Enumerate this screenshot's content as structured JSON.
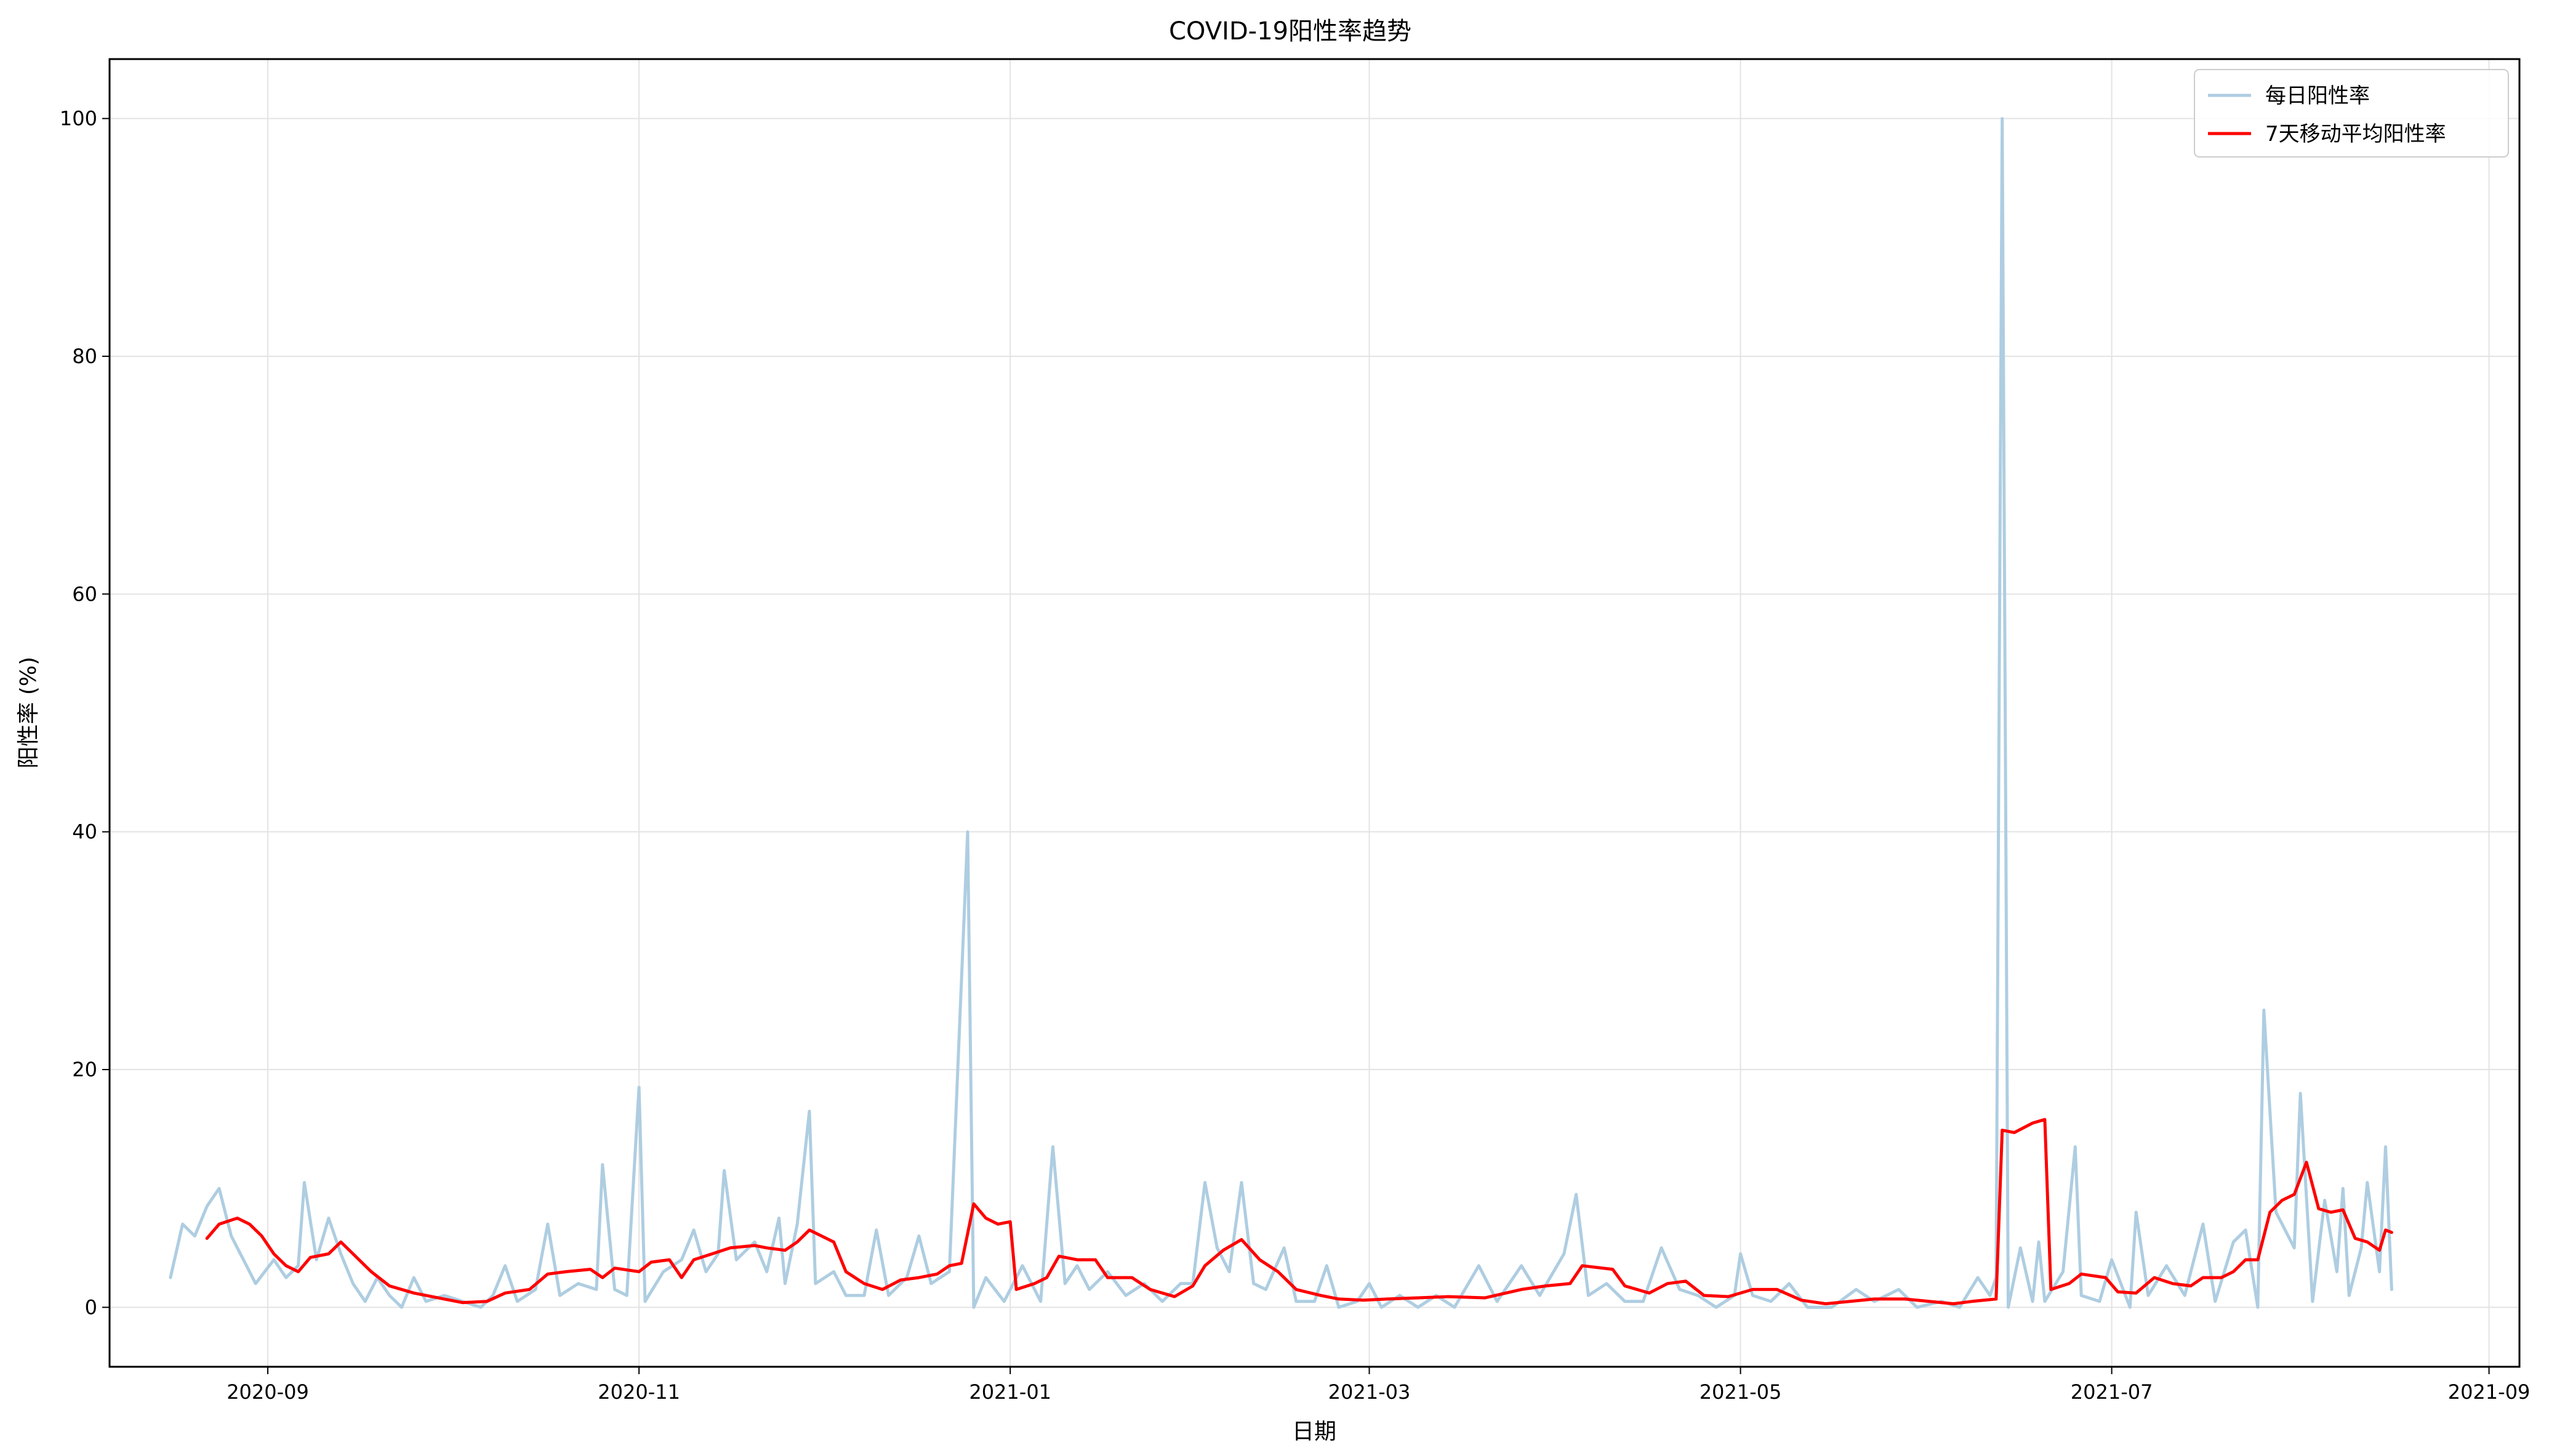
{
  "chart_data": {
    "type": "line",
    "title": "COVID-19阳性率趋势",
    "xlabel": "日期",
    "ylabel": "阳性率 (%)",
    "x_range": [
      "2020-08-06",
      "2021-09-06"
    ],
    "ylim": [
      -5,
      105
    ],
    "x_ticks": [
      "2020-09",
      "2020-11",
      "2021-01",
      "2021-03",
      "2021-05",
      "2021-07",
      "2021-09"
    ],
    "y_ticks": [
      0,
      20,
      40,
      60,
      80,
      100
    ],
    "grid": true,
    "legend_position": "top-right",
    "series": [
      {
        "name": "每日阳性率",
        "color": "#aecde1",
        "points": [
          [
            "2020-08-16",
            2.5
          ],
          [
            "2020-08-18",
            7.0
          ],
          [
            "2020-08-20",
            6.0
          ],
          [
            "2020-08-22",
            8.5
          ],
          [
            "2020-08-24",
            10.0
          ],
          [
            "2020-08-26",
            6.0
          ],
          [
            "2020-08-28",
            4.0
          ],
          [
            "2020-08-30",
            2.0
          ],
          [
            "2020-09-02",
            4.0
          ],
          [
            "2020-09-04",
            2.5
          ],
          [
            "2020-09-06",
            3.5
          ],
          [
            "2020-09-07",
            10.5
          ],
          [
            "2020-09-09",
            4.0
          ],
          [
            "2020-09-11",
            7.5
          ],
          [
            "2020-09-13",
            4.5
          ],
          [
            "2020-09-15",
            2.0
          ],
          [
            "2020-09-17",
            0.5
          ],
          [
            "2020-09-19",
            2.5
          ],
          [
            "2020-09-21",
            1.0
          ],
          [
            "2020-09-23",
            0.0
          ],
          [
            "2020-09-25",
            2.5
          ],
          [
            "2020-09-27",
            0.5
          ],
          [
            "2020-09-30",
            1.0
          ],
          [
            "2020-10-03",
            0.5
          ],
          [
            "2020-10-06",
            0.0
          ],
          [
            "2020-10-08",
            1.0
          ],
          [
            "2020-10-10",
            3.5
          ],
          [
            "2020-10-12",
            0.5
          ],
          [
            "2020-10-15",
            1.5
          ],
          [
            "2020-10-17",
            7.0
          ],
          [
            "2020-10-19",
            1.0
          ],
          [
            "2020-10-22",
            2.0
          ],
          [
            "2020-10-25",
            1.5
          ],
          [
            "2020-10-26",
            12.0
          ],
          [
            "2020-10-28",
            1.5
          ],
          [
            "2020-10-30",
            1.0
          ],
          [
            "2020-11-01",
            18.5
          ],
          [
            "2020-11-02",
            0.5
          ],
          [
            "2020-11-05",
            3.0
          ],
          [
            "2020-11-08",
            4.0
          ],
          [
            "2020-11-10",
            6.5
          ],
          [
            "2020-11-12",
            3.0
          ],
          [
            "2020-11-14",
            4.5
          ],
          [
            "2020-11-15",
            11.5
          ],
          [
            "2020-11-17",
            4.0
          ],
          [
            "2020-11-20",
            5.5
          ],
          [
            "2020-11-22",
            3.0
          ],
          [
            "2020-11-24",
            7.5
          ],
          [
            "2020-11-25",
            2.0
          ],
          [
            "2020-11-27",
            7.0
          ],
          [
            "2020-11-29",
            16.5
          ],
          [
            "2020-11-30",
            2.0
          ],
          [
            "2020-12-03",
            3.0
          ],
          [
            "2020-12-05",
            1.0
          ],
          [
            "2020-12-08",
            1.0
          ],
          [
            "2020-12-10",
            6.5
          ],
          [
            "2020-12-12",
            1.0
          ],
          [
            "2020-12-15",
            2.5
          ],
          [
            "2020-12-17",
            6.0
          ],
          [
            "2020-12-19",
            2.0
          ],
          [
            "2020-12-22",
            3.0
          ],
          [
            "2020-12-25",
            40.0
          ],
          [
            "2020-12-26",
            0.0
          ],
          [
            "2020-12-28",
            2.5
          ],
          [
            "2020-12-31",
            0.5
          ],
          [
            "2021-01-03",
            3.5
          ],
          [
            "2021-01-06",
            0.5
          ],
          [
            "2021-01-08",
            13.5
          ],
          [
            "2021-01-10",
            2.0
          ],
          [
            "2021-01-12",
            3.5
          ],
          [
            "2021-01-14",
            1.5
          ],
          [
            "2021-01-17",
            3.0
          ],
          [
            "2021-01-20",
            1.0
          ],
          [
            "2021-01-23",
            2.0
          ],
          [
            "2021-01-26",
            0.5
          ],
          [
            "2021-01-29",
            2.0
          ],
          [
            "2021-01-31",
            2.0
          ],
          [
            "2021-02-02",
            10.5
          ],
          [
            "2021-02-04",
            5.0
          ],
          [
            "2021-02-06",
            3.0
          ],
          [
            "2021-02-08",
            10.5
          ],
          [
            "2021-02-10",
            2.0
          ],
          [
            "2021-02-12",
            1.5
          ],
          [
            "2021-02-15",
            5.0
          ],
          [
            "2021-02-17",
            0.5
          ],
          [
            "2021-02-20",
            0.5
          ],
          [
            "2021-02-22",
            3.5
          ],
          [
            "2021-02-24",
            0.0
          ],
          [
            "2021-02-27",
            0.5
          ],
          [
            "2021-03-01",
            2.0
          ],
          [
            "2021-03-03",
            0.0
          ],
          [
            "2021-03-06",
            1.0
          ],
          [
            "2021-03-09",
            0.0
          ],
          [
            "2021-03-12",
            1.0
          ],
          [
            "2021-03-15",
            0.0
          ],
          [
            "2021-03-19",
            3.5
          ],
          [
            "2021-03-22",
            0.5
          ],
          [
            "2021-03-26",
            3.5
          ],
          [
            "2021-03-29",
            1.0
          ],
          [
            "2021-04-02",
            4.5
          ],
          [
            "2021-04-04",
            9.5
          ],
          [
            "2021-04-06",
            1.0
          ],
          [
            "2021-04-09",
            2.0
          ],
          [
            "2021-04-12",
            0.5
          ],
          [
            "2021-04-15",
            0.5
          ],
          [
            "2021-04-18",
            5.0
          ],
          [
            "2021-04-21",
            1.5
          ],
          [
            "2021-04-24",
            1.0
          ],
          [
            "2021-04-27",
            0.0
          ],
          [
            "2021-04-30",
            1.0
          ],
          [
            "2021-05-01",
            4.5
          ],
          [
            "2021-05-03",
            1.0
          ],
          [
            "2021-05-06",
            0.5
          ],
          [
            "2021-05-09",
            2.0
          ],
          [
            "2021-05-12",
            0.0
          ],
          [
            "2021-05-16",
            0.0
          ],
          [
            "2021-05-20",
            1.5
          ],
          [
            "2021-05-23",
            0.5
          ],
          [
            "2021-05-27",
            1.5
          ],
          [
            "2021-05-30",
            0.0
          ],
          [
            "2021-06-03",
            0.5
          ],
          [
            "2021-06-06",
            0.0
          ],
          [
            "2021-06-09",
            2.5
          ],
          [
            "2021-06-11",
            1.0
          ],
          [
            "2021-06-12",
            2.5
          ],
          [
            "2021-06-13",
            100.0
          ],
          [
            "2021-06-14",
            0.0
          ],
          [
            "2021-06-16",
            5.0
          ],
          [
            "2021-06-18",
            0.5
          ],
          [
            "2021-06-19",
            5.5
          ],
          [
            "2021-06-20",
            0.5
          ],
          [
            "2021-06-23",
            3.0
          ],
          [
            "2021-06-25",
            13.5
          ],
          [
            "2021-06-26",
            1.0
          ],
          [
            "2021-06-29",
            0.5
          ],
          [
            "2021-07-01",
            4.0
          ],
          [
            "2021-07-04",
            0.0
          ],
          [
            "2021-07-05",
            8.0
          ],
          [
            "2021-07-07",
            1.0
          ],
          [
            "2021-07-10",
            3.5
          ],
          [
            "2021-07-13",
            1.0
          ],
          [
            "2021-07-16",
            7.0
          ],
          [
            "2021-07-18",
            0.5
          ],
          [
            "2021-07-21",
            5.5
          ],
          [
            "2021-07-23",
            6.5
          ],
          [
            "2021-07-25",
            0.0
          ],
          [
            "2021-07-26",
            25.0
          ],
          [
            "2021-07-28",
            8.0
          ],
          [
            "2021-07-31",
            5.0
          ],
          [
            "2021-08-01",
            18.0
          ],
          [
            "2021-08-03",
            0.5
          ],
          [
            "2021-08-05",
            9.0
          ],
          [
            "2021-08-07",
            3.0
          ],
          [
            "2021-08-08",
            10.0
          ],
          [
            "2021-08-09",
            1.0
          ],
          [
            "2021-08-11",
            5.0
          ],
          [
            "2021-08-12",
            10.5
          ],
          [
            "2021-08-14",
            3.0
          ],
          [
            "2021-08-15",
            13.5
          ],
          [
            "2021-08-16",
            1.5
          ]
        ]
      },
      {
        "name": "7天移动平均阳性率",
        "color": "#ff0000",
        "points": [
          [
            "2020-08-22",
            5.8
          ],
          [
            "2020-08-24",
            7.0
          ],
          [
            "2020-08-27",
            7.5
          ],
          [
            "2020-08-29",
            7.0
          ],
          [
            "2020-08-31",
            6.0
          ],
          [
            "2020-09-02",
            4.5
          ],
          [
            "2020-09-04",
            3.5
          ],
          [
            "2020-09-06",
            3.0
          ],
          [
            "2020-09-08",
            4.2
          ],
          [
            "2020-09-11",
            4.5
          ],
          [
            "2020-09-13",
            5.5
          ],
          [
            "2020-09-15",
            4.5
          ],
          [
            "2020-09-18",
            3.0
          ],
          [
            "2020-09-21",
            1.8
          ],
          [
            "2020-09-25",
            1.2
          ],
          [
            "2020-09-30",
            0.7
          ],
          [
            "2020-10-03",
            0.4
          ],
          [
            "2020-10-07",
            0.5
          ],
          [
            "2020-10-10",
            1.2
          ],
          [
            "2020-10-14",
            1.5
          ],
          [
            "2020-10-17",
            2.8
          ],
          [
            "2020-10-20",
            3.0
          ],
          [
            "2020-10-24",
            3.2
          ],
          [
            "2020-10-26",
            2.5
          ],
          [
            "2020-10-28",
            3.3
          ],
          [
            "2020-11-01",
            3.0
          ],
          [
            "2020-11-03",
            3.8
          ],
          [
            "2020-11-06",
            4.0
          ],
          [
            "2020-11-08",
            2.5
          ],
          [
            "2020-11-10",
            4.0
          ],
          [
            "2020-11-13",
            4.5
          ],
          [
            "2020-11-16",
            5.0
          ],
          [
            "2020-11-20",
            5.2
          ],
          [
            "2020-11-22",
            5.0
          ],
          [
            "2020-11-25",
            4.8
          ],
          [
            "2020-11-27",
            5.5
          ],
          [
            "2020-11-29",
            6.5
          ],
          [
            "2020-12-01",
            6.0
          ],
          [
            "2020-12-03",
            5.5
          ],
          [
            "2020-12-05",
            3.0
          ],
          [
            "2020-12-08",
            2.0
          ],
          [
            "2020-12-11",
            1.5
          ],
          [
            "2020-12-14",
            2.3
          ],
          [
            "2020-12-17",
            2.5
          ],
          [
            "2020-12-20",
            2.8
          ],
          [
            "2020-12-22",
            3.5
          ],
          [
            "2020-12-24",
            3.7
          ],
          [
            "2020-12-26",
            8.7
          ],
          [
            "2020-12-28",
            7.5
          ],
          [
            "2020-12-30",
            7.0
          ],
          [
            "2021-01-01",
            7.2
          ],
          [
            "2021-01-02",
            1.5
          ],
          [
            "2021-01-05",
            2.0
          ],
          [
            "2021-01-07",
            2.5
          ],
          [
            "2021-01-09",
            4.3
          ],
          [
            "2021-01-12",
            4.0
          ],
          [
            "2021-01-15",
            4.0
          ],
          [
            "2021-01-17",
            2.5
          ],
          [
            "2021-01-21",
            2.5
          ],
          [
            "2021-01-24",
            1.5
          ],
          [
            "2021-01-28",
            0.9
          ],
          [
            "2021-01-31",
            1.8
          ],
          [
            "2021-02-02",
            3.5
          ],
          [
            "2021-02-05",
            4.8
          ],
          [
            "2021-02-08",
            5.7
          ],
          [
            "2021-02-11",
            4.0
          ],
          [
            "2021-02-14",
            3.0
          ],
          [
            "2021-02-17",
            1.5
          ],
          [
            "2021-02-21",
            1.0
          ],
          [
            "2021-02-24",
            0.7
          ],
          [
            "2021-02-28",
            0.6
          ],
          [
            "2021-03-04",
            0.7
          ],
          [
            "2021-03-09",
            0.8
          ],
          [
            "2021-03-14",
            0.9
          ],
          [
            "2021-03-20",
            0.8
          ],
          [
            "2021-03-26",
            1.5
          ],
          [
            "2021-03-30",
            1.8
          ],
          [
            "2021-04-03",
            2.0
          ],
          [
            "2021-04-05",
            3.5
          ],
          [
            "2021-04-10",
            3.2
          ],
          [
            "2021-04-12",
            1.8
          ],
          [
            "2021-04-16",
            1.2
          ],
          [
            "2021-04-19",
            2.0
          ],
          [
            "2021-04-22",
            2.2
          ],
          [
            "2021-04-25",
            1.0
          ],
          [
            "2021-04-29",
            0.9
          ],
          [
            "2021-05-03",
            1.5
          ],
          [
            "2021-05-07",
            1.5
          ],
          [
            "2021-05-11",
            0.6
          ],
          [
            "2021-05-15",
            0.3
          ],
          [
            "2021-05-19",
            0.5
          ],
          [
            "2021-05-23",
            0.7
          ],
          [
            "2021-05-28",
            0.7
          ],
          [
            "2021-06-01",
            0.5
          ],
          [
            "2021-06-05",
            0.3
          ],
          [
            "2021-06-08",
            0.5
          ],
          [
            "2021-06-12",
            0.7
          ],
          [
            "2021-06-13",
            14.9
          ],
          [
            "2021-06-15",
            14.7
          ],
          [
            "2021-06-18",
            15.5
          ],
          [
            "2021-06-20",
            15.8
          ],
          [
            "2021-06-21",
            1.5
          ],
          [
            "2021-06-24",
            2.0
          ],
          [
            "2021-06-26",
            2.8
          ],
          [
            "2021-06-30",
            2.5
          ],
          [
            "2021-07-02",
            1.3
          ],
          [
            "2021-07-05",
            1.2
          ],
          [
            "2021-07-08",
            2.5
          ],
          [
            "2021-07-11",
            2.0
          ],
          [
            "2021-07-14",
            1.8
          ],
          [
            "2021-07-16",
            2.5
          ],
          [
            "2021-07-19",
            2.5
          ],
          [
            "2021-07-21",
            3.0
          ],
          [
            "2021-07-23",
            4.0
          ],
          [
            "2021-07-25",
            4.0
          ],
          [
            "2021-07-27",
            8.0
          ],
          [
            "2021-07-29",
            9.0
          ],
          [
            "2021-07-31",
            9.5
          ],
          [
            "2021-08-02",
            12.2
          ],
          [
            "2021-08-04",
            8.3
          ],
          [
            "2021-08-06",
            8.0
          ],
          [
            "2021-08-08",
            8.2
          ],
          [
            "2021-08-10",
            5.8
          ],
          [
            "2021-08-12",
            5.5
          ],
          [
            "2021-08-14",
            4.8
          ],
          [
            "2021-08-15",
            6.5
          ],
          [
            "2021-08-16",
            6.3
          ]
        ]
      }
    ]
  }
}
